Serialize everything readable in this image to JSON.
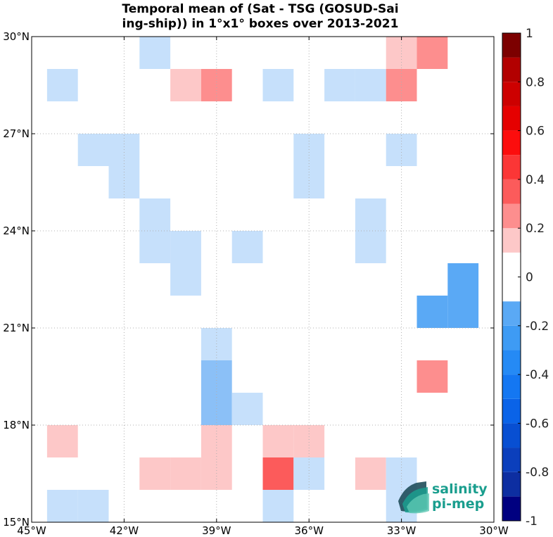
{
  "title": {
    "line1": "Temporal mean of (Sat - TSG (GOSUD-Sai",
    "line2": "ing-ship)) in 1°x1° boxes over 2013-2021"
  },
  "logo": {
    "line1": "salinity",
    "line2": "pi-mep",
    "colors": {
      "teal": "#1a9e8e",
      "dark": "#1f4e5a"
    }
  },
  "chart_data": {
    "type": "heatmap",
    "x_range": [
      -45,
      -30
    ],
    "y_range": [
      15,
      30
    ],
    "x_ticks": [
      {
        "value": -45,
        "label": "45°W"
      },
      {
        "value": -42,
        "label": "42°W"
      },
      {
        "value": -39,
        "label": "39°W"
      },
      {
        "value": -36,
        "label": "36°W"
      },
      {
        "value": -33,
        "label": "33°W"
      },
      {
        "value": -30,
        "label": "30°W"
      }
    ],
    "y_ticks": [
      {
        "value": 15,
        "label": "15°N"
      },
      {
        "value": 18,
        "label": "18°N"
      },
      {
        "value": 21,
        "label": "21°N"
      },
      {
        "value": 24,
        "label": "24°N"
      },
      {
        "value": 27,
        "label": "27°N"
      },
      {
        "value": 30,
        "label": "30°N"
      }
    ],
    "grid": "dotted",
    "colorbar": {
      "range": [
        -1,
        1
      ],
      "ticks": [
        {
          "value": 1,
          "label": "1"
        },
        {
          "value": 0.8,
          "label": "0.8"
        },
        {
          "value": 0.6,
          "label": "0.6"
        },
        {
          "value": 0.4,
          "label": "0.4"
        },
        {
          "value": 0.2,
          "label": "0.2"
        },
        {
          "value": 0,
          "label": "0"
        },
        {
          "value": -0.2,
          "label": "-0.2"
        },
        {
          "value": -0.4,
          "label": "-0.4"
        },
        {
          "value": -0.6,
          "label": "-0.6"
        },
        {
          "value": -0.8,
          "label": "-0.8"
        },
        {
          "value": -1,
          "label": "-1"
        }
      ],
      "colors": [
        "#000080",
        "#0d2ea1",
        "#0b3fbc",
        "#084fd2",
        "#0a63e8",
        "#1477f2",
        "#258af5",
        "#3e9bf4",
        "#5aa9f5",
        "#8bc0f7",
        "#c6e0fb",
        "#ffffff",
        "#fdc8c8",
        "#fd8e8e",
        "#fc5b5b",
        "#fb3636",
        "#fc0d0d",
        "#e50000",
        "#cd0000",
        "#b20000",
        "#970000",
        "#7c0000"
      ]
    },
    "cells": [
      {
        "lon": -41,
        "lat": 29.5,
        "value": -0.15
      },
      {
        "lon": -33,
        "lat": 29.5,
        "value": 0.15
      },
      {
        "lon": -32,
        "lat": 29.5,
        "value": 0.25
      },
      {
        "lon": -44,
        "lat": 28.5,
        "value": -0.15
      },
      {
        "lon": -40,
        "lat": 28.5,
        "value": 0.15
      },
      {
        "lon": -39,
        "lat": 28.5,
        "value": 0.25
      },
      {
        "lon": -37,
        "lat": 28.5,
        "value": -0.15
      },
      {
        "lon": -35,
        "lat": 28.5,
        "value": -0.15
      },
      {
        "lon": -34,
        "lat": 28.5,
        "value": -0.15
      },
      {
        "lon": -33,
        "lat": 28.5,
        "value": 0.25
      },
      {
        "lon": -43,
        "lat": 26.5,
        "value": -0.15
      },
      {
        "lon": -42,
        "lat": 26.5,
        "value": -0.15
      },
      {
        "lon": -36,
        "lat": 26.5,
        "value": -0.15
      },
      {
        "lon": -33,
        "lat": 26.5,
        "value": -0.15
      },
      {
        "lon": -42,
        "lat": 25.5,
        "value": -0.15
      },
      {
        "lon": -36,
        "lat": 25.5,
        "value": -0.15
      },
      {
        "lon": -41,
        "lat": 24.5,
        "value": -0.15
      },
      {
        "lon": -34,
        "lat": 24.5,
        "value": -0.15
      },
      {
        "lon": -41,
        "lat": 23.5,
        "value": -0.15
      },
      {
        "lon": -40,
        "lat": 23.5,
        "value": -0.15
      },
      {
        "lon": -38,
        "lat": 23.5,
        "value": -0.15
      },
      {
        "lon": -34,
        "lat": 23.5,
        "value": -0.15
      },
      {
        "lon": -31,
        "lat": 22.5,
        "value": -0.35
      },
      {
        "lon": -40,
        "lat": 22.5,
        "value": -0.15
      },
      {
        "lon": -32,
        "lat": 21.5,
        "value": -0.35
      },
      {
        "lon": -31,
        "lat": 21.5,
        "value": -0.35
      },
      {
        "lon": -39,
        "lat": 20.5,
        "value": -0.15
      },
      {
        "lon": -39,
        "lat": 19.5,
        "value": -0.25
      },
      {
        "lon": -32,
        "lat": 19.5,
        "value": 0.25
      },
      {
        "lon": -39,
        "lat": 18.5,
        "value": -0.25
      },
      {
        "lon": -38,
        "lat": 18.5,
        "value": -0.15
      },
      {
        "lon": -44,
        "lat": 17.5,
        "value": 0.15
      },
      {
        "lon": -39,
        "lat": 17.5,
        "value": 0.15
      },
      {
        "lon": -37,
        "lat": 17.5,
        "value": 0.15
      },
      {
        "lon": -36,
        "lat": 17.5,
        "value": 0.15
      },
      {
        "lon": -41,
        "lat": 16.5,
        "value": 0.15
      },
      {
        "lon": -40,
        "lat": 16.5,
        "value": 0.15
      },
      {
        "lon": -39,
        "lat": 16.5,
        "value": 0.15
      },
      {
        "lon": -37,
        "lat": 16.5,
        "value": 0.35
      },
      {
        "lon": -36,
        "lat": 16.5,
        "value": -0.15
      },
      {
        "lon": -34,
        "lat": 16.5,
        "value": 0.15
      },
      {
        "lon": -33,
        "lat": 16.5,
        "value": -0.15
      },
      {
        "lon": -44,
        "lat": 15.5,
        "value": -0.15
      },
      {
        "lon": -43,
        "lat": 15.5,
        "value": -0.15
      },
      {
        "lon": -37,
        "lat": 15.5,
        "value": -0.15
      },
      {
        "lon": -33,
        "lat": 15.5,
        "value": -0.15
      }
    ]
  }
}
